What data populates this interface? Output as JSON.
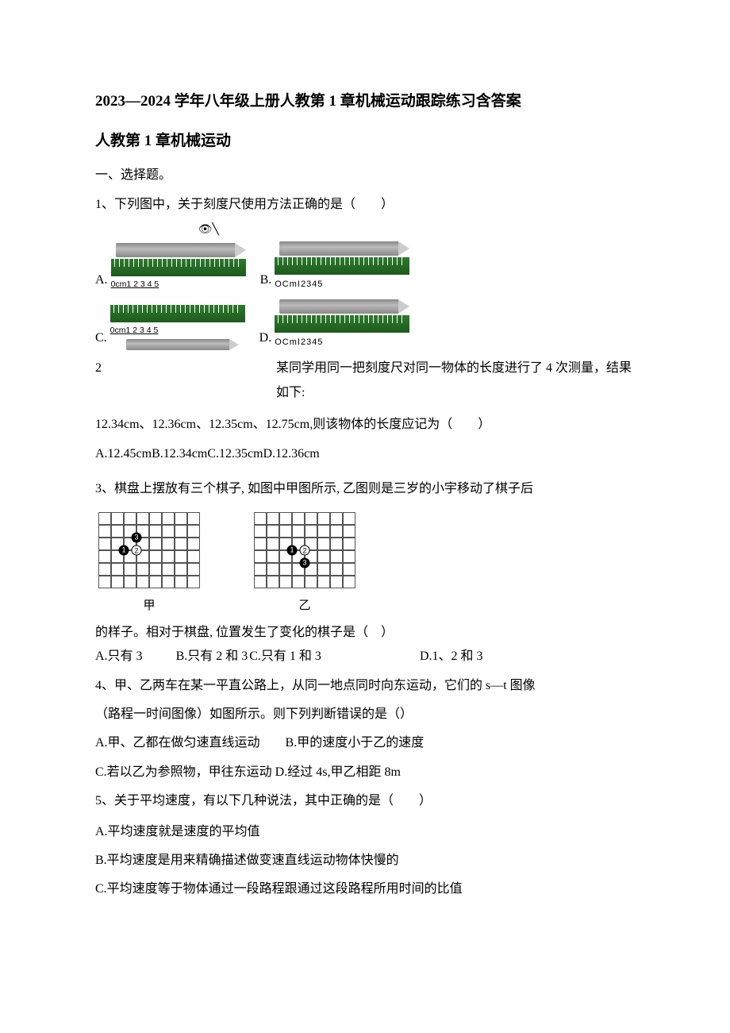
{
  "title": "2023—2024 学年八年级上册人教第 1 章机械运动跟踪练习含答案",
  "subtitle": "人教第 1 章机械运动",
  "section1": "一、选择题。",
  "q1": {
    "stem": "1、下列图中，关于刻度尺使用方法正确的是（　　）",
    "labels": {
      "A": "A.",
      "B": "B.",
      "C": "C.",
      "D": "D."
    },
    "ruler_a": "0cm1  2  3  4  5",
    "ruler_b": "OCmI2345",
    "ruler_c": "0cm1  2  3  4  5",
    "ruler_d": "OCmI2345"
  },
  "q2": {
    "num": "2",
    "side": "某同学用同一把刻度尺对同一物体的长度进行了 4 次测量，结果如下:",
    "line2": "12.34cm、12.36cm、12.35cm、12.75cm,则该物体的长度应记为（　　）",
    "opts": "A.12.45cmB.12.34cmC.12.35cmD.12.36cm"
  },
  "q3": {
    "stem": "3、棋盘上摆放有三个棋子, 如图中甲图所示, 乙图则是三岁的小宇移动了棋子后",
    "board_a_label": "甲",
    "board_b_label": "乙",
    "line2": "的样子。相对于棋盘, 位置发生了变化的棋子是（　）",
    "optA": "A.只有 3",
    "optB": "B.只有 2 和 3",
    "optC": "C.只有 1 和 3",
    "optD": "D.1、2 和 3",
    "jia": {
      "stones": [
        {
          "n": "3",
          "c": "black",
          "col": 3,
          "row": 2
        },
        {
          "n": "1",
          "c": "black",
          "col": 2,
          "row": 3
        },
        {
          "n": "2",
          "c": "white",
          "col": 3,
          "row": 3
        }
      ]
    },
    "yi": {
      "stones": [
        {
          "n": "1",
          "c": "black",
          "col": 3,
          "row": 3
        },
        {
          "n": "2",
          "c": "white",
          "col": 4,
          "row": 3
        },
        {
          "n": "3",
          "c": "black",
          "col": 4,
          "row": 4
        }
      ]
    }
  },
  "q4": {
    "stem1": "4、甲、乙两车在某一平直公路上，从同一地点同时向东运动，它们的 s—t 图像",
    "stem2": "（路程一时间图像）如图所示。则下列判断错误的是（）",
    "optAB": "A.甲、乙都在做匀速直线运动　　B.甲的速度小于乙的速度",
    "optCD": "C.若以乙为参照物，甲往东运动 D.经过 4s,甲乙相距 8m"
  },
  "q5": {
    "stem": "5、关于平均速度，有以下几种说法，其中正确的是（　　）",
    "optA": "A.平均速度就是速度的平均值",
    "optB": "B.平均速度是用来精确描述做变速直线运动物体快慢的",
    "optC": "C.平均速度等于物体通过一段路程跟通过这段路程所用时间的比值"
  },
  "style": {
    "text_color": "#000000",
    "bg_color": "#ffffff",
    "ruler_color": "#1e5a1e",
    "pencil_color": "#999999",
    "board_line": "#555555",
    "font_size_body": 16,
    "font_size_title": 19
  }
}
